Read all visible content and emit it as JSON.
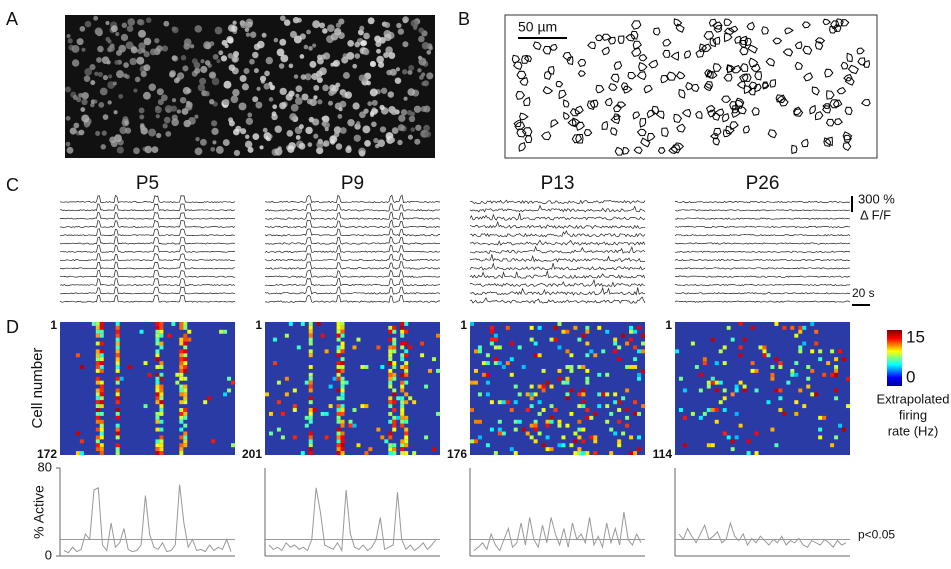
{
  "panels": [
    "A",
    "B",
    "C",
    "D"
  ],
  "scale_bar": "50 µm",
  "ages": [
    "P5",
    "P9",
    "P13",
    "P26"
  ],
  "trace_scale": {
    "amplitude": "300 %",
    "unit": "Δ F/F",
    "time": "20 s"
  },
  "heatmap": {
    "y_label": "Cell number",
    "first": "1",
    "cell_counts": [
      172,
      201,
      176,
      114
    ],
    "colorbar": {
      "max": 15,
      "min": 0,
      "label": [
        "Extrapolated",
        "firing",
        "rate (Hz)"
      ]
    }
  },
  "chart_data": [
    {
      "type": "line",
      "ylabel": "% Active",
      "ylim": [
        0,
        80
      ],
      "yticks": [
        0,
        80
      ],
      "threshold": 15,
      "color": "#999999",
      "categories": [
        null,
        null,
        null,
        null,
        null,
        null,
        null,
        null,
        null,
        null,
        null,
        null,
        null,
        null,
        null,
        null,
        null,
        null,
        null,
        null,
        null,
        null,
        null,
        null,
        null,
        null,
        null,
        null,
        null,
        null,
        null,
        null,
        null,
        null,
        null,
        null,
        null,
        null,
        null,
        null
      ],
      "values": [
        5,
        3,
        8,
        4,
        6,
        20,
        15,
        60,
        62,
        10,
        5,
        30,
        8,
        12,
        25,
        6,
        4,
        5,
        10,
        55,
        20,
        8,
        6,
        12,
        4,
        5,
        10,
        65,
        30,
        8,
        15,
        5,
        6,
        4,
        10,
        5,
        8,
        6,
        15,
        4
      ]
    },
    {
      "type": "line",
      "ylim": [
        0,
        80
      ],
      "threshold": 15,
      "color": "#999999",
      "categories": [
        null,
        null,
        null,
        null,
        null,
        null,
        null,
        null,
        null,
        null,
        null,
        null,
        null,
        null,
        null,
        null,
        null,
        null,
        null,
        null,
        null,
        null,
        null,
        null,
        null,
        null,
        null,
        null,
        null,
        null,
        null,
        null,
        null,
        null,
        null,
        null,
        null,
        null,
        null,
        null
      ],
      "values": [
        10,
        6,
        8,
        5,
        12,
        8,
        10,
        6,
        8,
        5,
        15,
        62,
        40,
        10,
        8,
        6,
        12,
        5,
        60,
        20,
        8,
        6,
        10,
        5,
        8,
        15,
        35,
        6,
        8,
        10,
        58,
        15,
        6,
        10,
        5,
        8,
        12,
        6,
        10,
        15
      ]
    },
    {
      "type": "line",
      "ylim": [
        0,
        80
      ],
      "threshold": 15,
      "color": "#999999",
      "categories": [
        null,
        null,
        null,
        null,
        null,
        null,
        null,
        null,
        null,
        null,
        null,
        null,
        null,
        null,
        null,
        null,
        null,
        null,
        null,
        null,
        null,
        null,
        null,
        null,
        null,
        null,
        null,
        null,
        null,
        null,
        null,
        null,
        null,
        null,
        null,
        null,
        null,
        null,
        null,
        null
      ],
      "values": [
        5,
        8,
        12,
        6,
        20,
        10,
        5,
        15,
        25,
        8,
        12,
        30,
        10,
        35,
        15,
        8,
        28,
        12,
        35,
        20,
        10,
        25,
        8,
        30,
        15,
        20,
        12,
        35,
        10,
        18,
        8,
        30,
        12,
        25,
        10,
        40,
        15,
        10,
        20,
        12
      ]
    },
    {
      "type": "line",
      "ylim": [
        0,
        80
      ],
      "threshold": 15,
      "annotation": "p<0.05",
      "color": "#999999",
      "categories": [
        null,
        null,
        null,
        null,
        null,
        null,
        null,
        null,
        null,
        null,
        null,
        null,
        null,
        null,
        null,
        null,
        null,
        null,
        null,
        null,
        null,
        null,
        null,
        null,
        null,
        null,
        null,
        null,
        null,
        null,
        null,
        null,
        null,
        null,
        null,
        null,
        null,
        null,
        null,
        null
      ],
      "values": [
        20,
        15,
        25,
        18,
        12,
        20,
        28,
        15,
        18,
        22,
        12,
        15,
        30,
        18,
        14,
        20,
        10,
        16,
        12,
        18,
        14,
        10,
        15,
        12,
        18,
        10,
        14,
        12,
        16,
        10,
        8,
        14,
        12,
        10,
        15,
        12,
        8,
        14,
        10,
        12
      ]
    }
  ]
}
